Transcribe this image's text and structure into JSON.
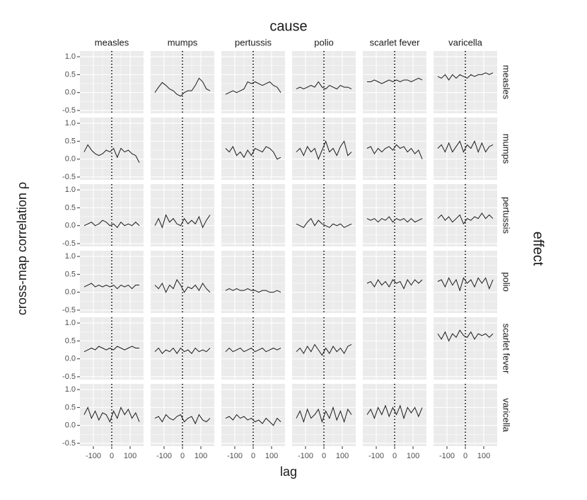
{
  "chart_data": {
    "type": "facet-line",
    "title": "cause",
    "y2_title": "effect",
    "xlabel": "lag",
    "ylabel": "cross-map correlation ρ",
    "columns": [
      "measles",
      "mumps",
      "pertussis",
      "polio",
      "scarlet fever",
      "varicella"
    ],
    "rows": [
      "measles",
      "mumps",
      "pertussis",
      "polio",
      "scarlet fever",
      "varicella"
    ],
    "x": [
      -150,
      -130,
      -110,
      -90,
      -70,
      -50,
      -30,
      -10,
      10,
      30,
      50,
      70,
      90,
      110,
      130,
      150
    ],
    "xlim": [
      -173,
      173
    ],
    "xticks": [
      -100,
      0,
      100
    ],
    "ylim": [
      -0.58,
      1.16
    ],
    "yticks": [
      {
        "value": -0.5,
        "label": "-0.5"
      },
      {
        "value": 0,
        "label": "0.0"
      },
      {
        "value": 0.5,
        "label": "0.5"
      },
      {
        "value": 1,
        "label": "1.0"
      }
    ],
    "vline": 0,
    "grid": true,
    "color": "#1a1a1a",
    "panel_color": "#ebebeb",
    "panels": [
      [
        null,
        [
          0.0,
          0.15,
          0.28,
          0.2,
          0.1,
          0.05,
          -0.05,
          -0.1,
          0.0,
          0.05,
          0.05,
          0.2,
          0.4,
          0.3,
          0.1,
          0.05
        ],
        [
          -0.05,
          0.0,
          0.05,
          0.0,
          0.05,
          0.1,
          0.3,
          0.25,
          0.3,
          0.25,
          0.2,
          0.25,
          0.3,
          0.2,
          0.15,
          0.0
        ],
        [
          0.1,
          0.15,
          0.1,
          0.15,
          0.2,
          0.15,
          0.3,
          0.15,
          0.1,
          0.2,
          0.15,
          0.1,
          0.2,
          0.15,
          0.15,
          0.1
        ],
        [
          0.3,
          0.3,
          0.35,
          0.3,
          0.25,
          0.3,
          0.35,
          0.3,
          0.35,
          0.3,
          0.35,
          0.35,
          0.3,
          0.35,
          0.4,
          0.35
        ],
        [
          0.45,
          0.4,
          0.5,
          0.35,
          0.5,
          0.4,
          0.5,
          0.45,
          0.4,
          0.5,
          0.45,
          0.5,
          0.5,
          0.55,
          0.5,
          0.55
        ]
      ],
      [
        [
          0.2,
          0.4,
          0.25,
          0.15,
          0.1,
          0.15,
          0.25,
          0.2,
          0.3,
          0.05,
          0.3,
          0.2,
          0.25,
          0.15,
          0.1,
          -0.1
        ],
        null,
        [
          0.3,
          0.2,
          0.35,
          0.1,
          0.2,
          0.05,
          0.25,
          0.1,
          0.3,
          0.25,
          0.2,
          0.35,
          0.3,
          0.2,
          0.0,
          0.05
        ],
        [
          0.2,
          0.3,
          0.1,
          0.35,
          0.2,
          0.3,
          0.0,
          0.25,
          0.5,
          0.2,
          0.3,
          0.1,
          0.35,
          0.5,
          0.1,
          0.2
        ],
        [
          0.3,
          0.35,
          0.15,
          0.3,
          0.2,
          0.3,
          0.35,
          0.25,
          0.4,
          0.3,
          0.35,
          0.2,
          0.3,
          0.15,
          0.25,
          0.0
        ],
        [
          0.3,
          0.4,
          0.2,
          0.45,
          0.2,
          0.35,
          0.5,
          0.2,
          0.4,
          0.3,
          0.5,
          0.2,
          0.45,
          0.2,
          0.35,
          0.4
        ]
      ],
      [
        [
          0.0,
          0.05,
          0.1,
          0.0,
          0.05,
          0.15,
          0.1,
          0.0,
          0.05,
          -0.05,
          0.1,
          0.0,
          0.05,
          0.0,
          0.1,
          0.0
        ],
        [
          0.0,
          0.2,
          -0.05,
          0.3,
          0.1,
          0.2,
          0.05,
          0.0,
          0.2,
          0.05,
          0.15,
          0.05,
          0.25,
          -0.05,
          0.15,
          0.3
        ],
        null,
        [
          0.05,
          0.0,
          -0.05,
          0.1,
          0.2,
          0.0,
          0.15,
          0.05,
          0.0,
          -0.05,
          0.05,
          0.0,
          0.05,
          -0.05,
          0.0,
          0.05
        ],
        [
          0.2,
          0.15,
          0.2,
          0.1,
          0.2,
          0.15,
          0.25,
          0.1,
          0.2,
          0.15,
          0.2,
          0.1,
          0.2,
          0.1,
          0.15,
          0.2
        ],
        [
          0.2,
          0.3,
          0.15,
          0.25,
          0.1,
          0.2,
          0.3,
          0.05,
          0.2,
          0.15,
          0.25,
          0.2,
          0.35,
          0.2,
          0.3,
          0.2
        ]
      ],
      [
        [
          0.15,
          0.2,
          0.25,
          0.15,
          0.2,
          0.15,
          0.2,
          0.15,
          0.2,
          0.1,
          0.2,
          0.15,
          0.2,
          0.1,
          0.2,
          0.2
        ],
        [
          0.2,
          0.1,
          0.25,
          0.0,
          0.2,
          0.1,
          0.35,
          0.2,
          0.0,
          0.15,
          0.1,
          0.2,
          0.05,
          0.25,
          0.1,
          0.0
        ],
        [
          0.05,
          0.1,
          0.05,
          0.1,
          0.05,
          0.05,
          0.1,
          0.05,
          0.05,
          0.0,
          0.05,
          0.05,
          0.0,
          0.0,
          0.05,
          0.0
        ],
        null,
        [
          0.25,
          0.3,
          0.15,
          0.35,
          0.2,
          0.3,
          0.15,
          0.35,
          0.25,
          0.3,
          0.1,
          0.35,
          0.2,
          0.35,
          0.25,
          0.35
        ],
        [
          0.3,
          0.35,
          0.15,
          0.4,
          0.2,
          0.35,
          0.05,
          0.4,
          0.25,
          0.35,
          0.15,
          0.4,
          0.25,
          0.4,
          0.1,
          0.35
        ]
      ],
      [
        [
          0.2,
          0.25,
          0.3,
          0.25,
          0.35,
          0.3,
          0.25,
          0.3,
          0.25,
          0.35,
          0.3,
          0.25,
          0.3,
          0.35,
          0.3,
          0.3
        ],
        [
          0.2,
          0.3,
          0.15,
          0.25,
          0.2,
          0.3,
          0.15,
          0.3,
          0.2,
          0.25,
          0.15,
          0.3,
          0.2,
          0.25,
          0.2,
          0.3
        ],
        [
          0.2,
          0.3,
          0.2,
          0.25,
          0.3,
          0.2,
          0.25,
          0.3,
          0.2,
          0.25,
          0.3,
          0.2,
          0.25,
          0.3,
          0.25,
          0.3
        ],
        [
          0.2,
          0.3,
          0.15,
          0.35,
          0.2,
          0.4,
          0.25,
          0.1,
          0.3,
          0.15,
          0.35,
          0.2,
          0.3,
          0.15,
          0.35,
          0.4
        ],
        null,
        [
          0.7,
          0.55,
          0.75,
          0.5,
          0.7,
          0.6,
          0.8,
          0.65,
          0.6,
          0.75,
          0.55,
          0.7,
          0.65,
          0.7,
          0.6,
          0.7
        ]
      ],
      [
        [
          0.3,
          0.5,
          0.2,
          0.4,
          0.15,
          0.35,
          0.3,
          0.1,
          0.4,
          0.2,
          0.5,
          0.3,
          0.45,
          0.2,
          0.35,
          0.1
        ],
        [
          0.2,
          0.25,
          0.1,
          0.3,
          0.2,
          0.15,
          0.25,
          0.3,
          0.1,
          0.2,
          0.25,
          0.05,
          0.3,
          0.15,
          0.1,
          0.2
        ],
        [
          0.2,
          0.25,
          0.15,
          0.3,
          0.2,
          0.25,
          0.15,
          0.2,
          0.1,
          0.15,
          0.05,
          0.2,
          0.1,
          0.0,
          0.2,
          0.1
        ],
        [
          0.2,
          0.4,
          0.1,
          0.45,
          0.2,
          0.3,
          0.45,
          0.1,
          0.4,
          0.2,
          0.5,
          0.15,
          0.4,
          0.1,
          0.45,
          0.3
        ],
        [
          0.3,
          0.45,
          0.2,
          0.5,
          0.3,
          0.55,
          0.25,
          0.5,
          0.3,
          0.55,
          0.2,
          0.5,
          0.35,
          0.5,
          0.25,
          0.5
        ],
        null
      ]
    ]
  }
}
